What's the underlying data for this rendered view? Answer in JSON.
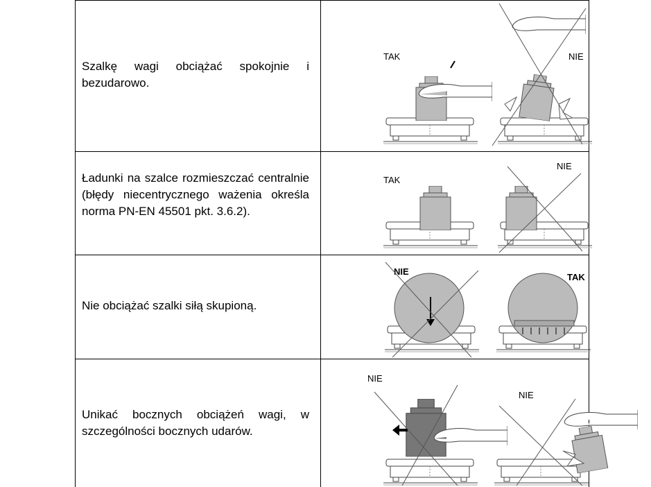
{
  "table": {
    "rows": [
      {
        "text": "Szalkę wagi obciążać spokojnie i bezudarowo.",
        "labels": [
          "TAK",
          "NIE"
        ]
      },
      {
        "text": "Ładunki na szalce rozmieszczać centralnie (błędy niecentrycznego ważenia określa norma PN-EN 45501 pkt. 3.6.2).",
        "labels": [
          "TAK",
          "NIE"
        ]
      },
      {
        "text": "Nie obciążać szalki siłą skupioną.",
        "labels": [
          "NIE",
          "TAK"
        ]
      },
      {
        "text": "Unikać bocznych obciążeń wagi, w szczególności bocznych udarów.",
        "labels": [
          "NIE",
          "NIE"
        ]
      }
    ]
  }
}
